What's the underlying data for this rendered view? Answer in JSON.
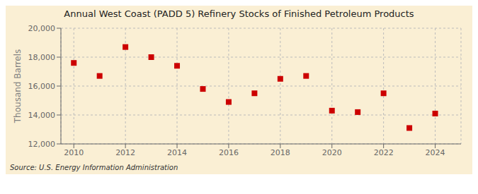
{
  "chart_data": {
    "type": "scatter",
    "title": "Annual West Coast (PADD 5) Refinery Stocks of Finished Petroleum Products",
    "ylabel": "Thousand Barrels",
    "annotations": [
      "Source: U.S. Energy Information Administration"
    ],
    "x": [
      2010,
      2011,
      2012,
      2013,
      2014,
      2015,
      2016,
      2017,
      2018,
      2019,
      2020,
      2021,
      2022,
      2023,
      2024
    ],
    "values": [
      17600,
      16700,
      18700,
      18000,
      17400,
      15800,
      14900,
      15500,
      16500,
      16700,
      14300,
      14200,
      15500,
      13100,
      14100
    ],
    "color": "#cc0000",
    "marker": "square",
    "xlim": [
      2009.5,
      2025.0
    ],
    "ylim": [
      12000,
      20000
    ],
    "xticks": [
      2010,
      2012,
      2014,
      2016,
      2018,
      2020,
      2022,
      2024
    ],
    "yticks": [
      {
        "value": 12000,
        "label": "12,000"
      },
      {
        "value": 14000,
        "label": "14,000"
      },
      {
        "value": 16000,
        "label": "16,000"
      },
      {
        "value": 18000,
        "label": "18,000"
      },
      {
        "value": 20000,
        "label": "20,000"
      }
    ],
    "grid": true
  }
}
